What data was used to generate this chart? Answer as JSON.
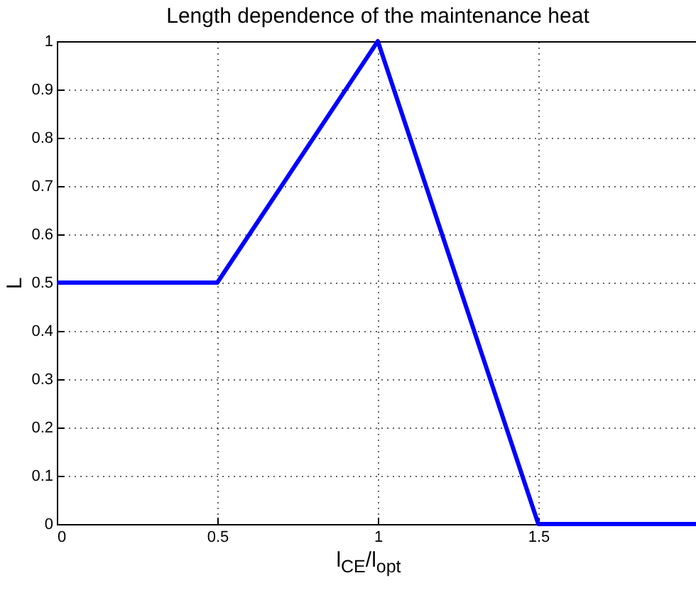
{
  "chart_data": {
    "type": "line",
    "title": "Length dependence of the maintenance heat",
    "xlabel": "l$_{CE}$/l$_{opt}$",
    "ylabel": "L",
    "x": [
      0,
      0.5,
      1,
      1.5,
      2
    ],
    "series": [
      {
        "color": "#0000ff",
        "values": [
          0.5,
          0.5,
          1,
          0,
          0
        ]
      }
    ],
    "xlim": [
      0,
      2
    ],
    "xticks": [
      0,
      0.5,
      1,
      1.5
    ],
    "ylim": [
      0,
      1
    ],
    "yticks": [
      0,
      0.1,
      0.2,
      0.3,
      0.4,
      0.5,
      0.6,
      0.7,
      0.8,
      0.9,
      1
    ],
    "grid": true,
    "marker": "none",
    "line_style": "solid"
  }
}
